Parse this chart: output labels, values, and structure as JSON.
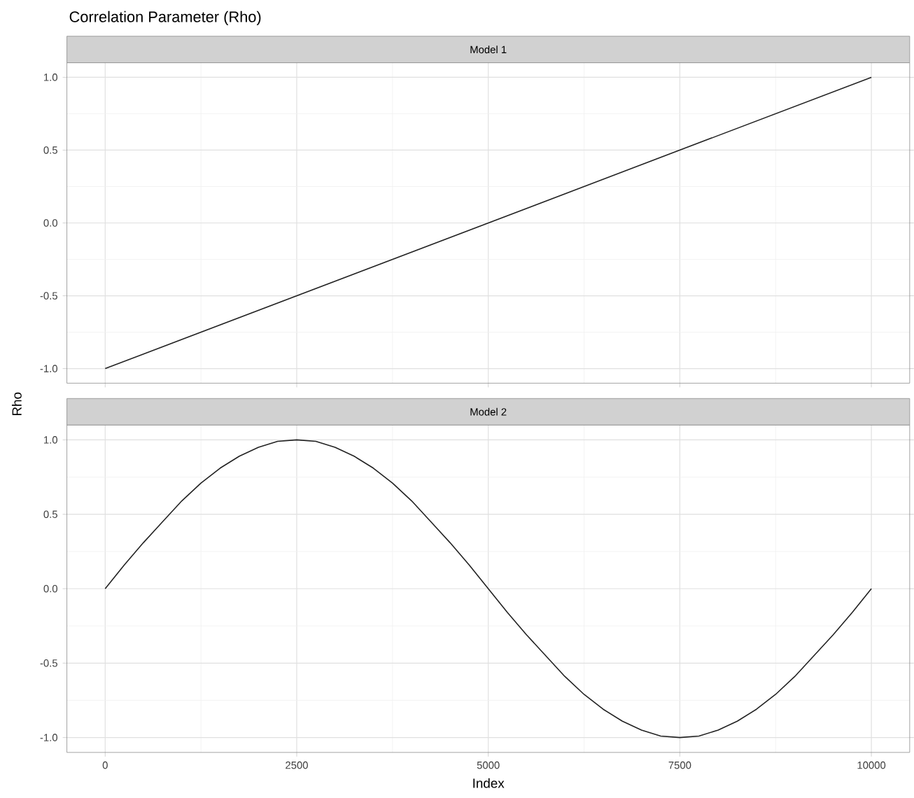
{
  "chart_data": [
    {
      "type": "line",
      "title": "Correlation Parameter (Rho)",
      "subtitle": "Model 1",
      "ylabel": "Rho",
      "x": [
        0,
        10000
      ],
      "series": [
        {
          "color": "#222222",
          "values": [
            -1.0,
            1.0
          ]
        }
      ],
      "xlim": [
        -500,
        10500
      ],
      "ylim": [
        -1.1,
        1.1
      ],
      "xticks": [
        0,
        2500,
        5000,
        7500,
        10000
      ],
      "yticks": [
        {
          "value": -1.0,
          "label": "-1.0"
        },
        {
          "value": -0.5,
          "label": "-0.5"
        },
        {
          "value": 0.0,
          "label": "0.0"
        },
        {
          "value": 0.5,
          "label": "0.5"
        },
        {
          "value": 1.0,
          "label": "1.0"
        }
      ],
      "tick_labels": "y",
      "grid": true
    },
    {
      "type": "line",
      "subtitle": "Model 2",
      "xlabel": "Index",
      "x": [
        0,
        250,
        500,
        750,
        1000,
        1250,
        1500,
        1750,
        2000,
        2250,
        2500,
        2750,
        3000,
        3250,
        3500,
        3750,
        4000,
        4250,
        4500,
        4750,
        5000,
        5250,
        5500,
        5750,
        6000,
        6250,
        6500,
        6750,
        7000,
        7250,
        7500,
        7750,
        8000,
        8250,
        8500,
        8750,
        9000,
        9250,
        9500,
        9750,
        10000
      ],
      "series": [
        {
          "color": "#222222",
          "values": [
            0.0,
            0.16,
            0.31,
            0.45,
            0.59,
            0.71,
            0.81,
            0.89,
            0.95,
            0.99,
            1.0,
            0.99,
            0.95,
            0.89,
            0.81,
            0.71,
            0.59,
            0.45,
            0.31,
            0.16,
            0.0,
            -0.16,
            -0.31,
            -0.45,
            -0.59,
            -0.71,
            -0.81,
            -0.89,
            -0.95,
            -0.99,
            -1.0,
            -0.99,
            -0.95,
            -0.89,
            -0.81,
            -0.71,
            -0.59,
            -0.45,
            -0.31,
            -0.16,
            0.0
          ]
        }
      ],
      "xlim": [
        -500,
        10500
      ],
      "ylim": [
        -1.1,
        1.1
      ],
      "xticks": [
        0,
        2500,
        5000,
        7500,
        10000
      ],
      "yticks": [
        {
          "value": -1.0,
          "label": "-1.0"
        },
        {
          "value": -0.5,
          "label": "-0.5"
        },
        {
          "value": 0.0,
          "label": "0.0"
        },
        {
          "value": 0.5,
          "label": "0.5"
        },
        {
          "value": 1.0,
          "label": "1.0"
        }
      ],
      "grid": true
    }
  ]
}
